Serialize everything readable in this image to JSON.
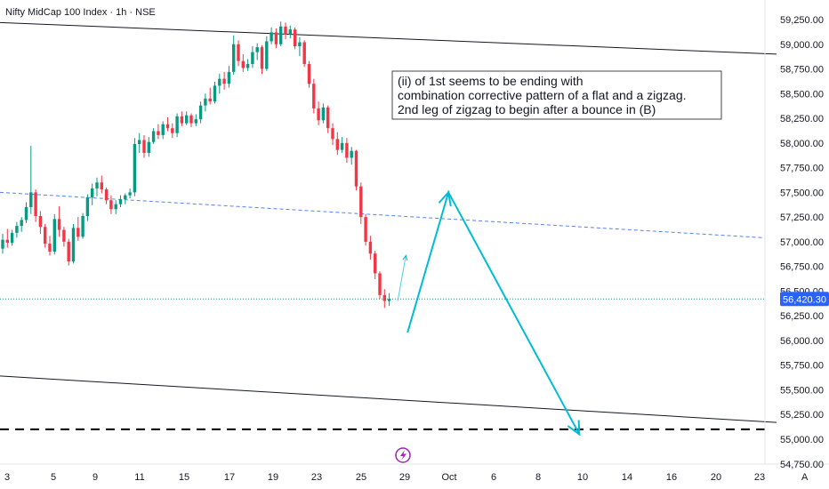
{
  "chart_data": {
    "type": "candlestick",
    "title": "Nifty MidCap 100 Index · 1h · NSE",
    "ylim": [
      54750,
      59250
    ],
    "price_ticks": [
      "59,250.00",
      "59,000.00",
      "58,750.00",
      "58,500.00",
      "58,250.00",
      "58,000.00",
      "57,750.00",
      "57,500.00",
      "57,250.00",
      "57,000.00",
      "56,750.00",
      "56,500.00",
      "56,250.00",
      "56,000.00",
      "55,750.00",
      "55,500.00",
      "55,250.00",
      "55,000.00",
      "54,750.00"
    ],
    "date_ticks": [
      "3",
      "5",
      "9",
      "11",
      "15",
      "17",
      "19",
      "23",
      "25",
      "29",
      "Oct",
      "6",
      "8",
      "10",
      "14",
      "16",
      "20",
      "23"
    ],
    "axis_mode_label": "A",
    "last_price": {
      "label": "56,420.30",
      "value": 56420.3,
      "color": "#2962ff"
    },
    "annotation": {
      "lines": [
        "(ii) of 1st seems to be ending with",
        "combination corrective pattern of a flat and a zigzag.",
        "2nd leg of zigzag to begin after a bounce in (B)"
      ]
    },
    "colors": {
      "up": "#089981",
      "down": "#f23645",
      "projection": "#00bcd4",
      "midline": "#2962ff",
      "channel": "#131722"
    },
    "support_level": 55100,
    "channel_upper": [
      59220,
      58900
    ],
    "channel_lower": [
      55640,
      55170
    ],
    "mid_line": [
      57500,
      57040
    ],
    "projection": [
      {
        "t": 124.5,
        "price": 56080
      },
      {
        "t": 137.0,
        "price": 57500
      },
      {
        "t": 177.0,
        "price": 55050
      }
    ],
    "small_projection": [
      {
        "t": 121.5,
        "price": 56400
      },
      {
        "t": 124.0,
        "price": 56860
      }
    ],
    "candles": [
      [
        56930,
        57080,
        56880,
        57020
      ],
      [
        57020,
        57130,
        56940,
        56990
      ],
      [
        56990,
        57120,
        56960,
        57090
      ],
      [
        57090,
        57200,
        57040,
        57160
      ],
      [
        57160,
        57250,
        57100,
        57220
      ],
      [
        57220,
        57400,
        57190,
        57350
      ],
      [
        57350,
        57970,
        57280,
        57500
      ],
      [
        57500,
        57530,
        57200,
        57260
      ],
      [
        57260,
        57310,
        57080,
        57150
      ],
      [
        57150,
        57180,
        56940,
        56980
      ],
      [
        56980,
        57060,
        56860,
        56900
      ],
      [
        56900,
        57280,
        56870,
        57230
      ],
      [
        57230,
        57360,
        57050,
        57120
      ],
      [
        57120,
        57150,
        56950,
        57000
      ],
      [
        57000,
        57030,
        56760,
        56800
      ],
      [
        56800,
        57180,
        56780,
        57140
      ],
      [
        57140,
        57250,
        57010,
        57050
      ],
      [
        57050,
        57290,
        57030,
        57260
      ],
      [
        57260,
        57480,
        57210,
        57450
      ],
      [
        57450,
        57590,
        57370,
        57540
      ],
      [
        57540,
        57650,
        57460,
        57600
      ],
      [
        57600,
        57670,
        57490,
        57530
      ],
      [
        57530,
        57550,
        57380,
        57420
      ],
      [
        57420,
        57470,
        57280,
        57330
      ],
      [
        57330,
        57420,
        57280,
        57380
      ],
      [
        57380,
        57470,
        57350,
        57430
      ],
      [
        57430,
        57490,
        57380,
        57470
      ],
      [
        57470,
        57540,
        57440,
        57500
      ],
      [
        57500,
        58050,
        57460,
        57990
      ],
      [
        57990,
        58100,
        57900,
        58030
      ],
      [
        58030,
        58080,
        57850,
        57900
      ],
      [
        57900,
        58060,
        57860,
        58010
      ],
      [
        58010,
        58150,
        57990,
        58120
      ],
      [
        58120,
        58190,
        58040,
        58080
      ],
      [
        58080,
        58220,
        58040,
        58190
      ],
      [
        58190,
        58260,
        58120,
        58150
      ],
      [
        58150,
        58200,
        58050,
        58100
      ],
      [
        58100,
        58300,
        58060,
        58270
      ],
      [
        58270,
        58320,
        58170,
        58200
      ],
      [
        58200,
        58320,
        58180,
        58280
      ],
      [
        58280,
        58300,
        58160,
        58200
      ],
      [
        58200,
        58290,
        58170,
        58240
      ],
      [
        58240,
        58420,
        58200,
        58380
      ],
      [
        58380,
        58500,
        58320,
        58450
      ],
      [
        58450,
        58560,
        58390,
        58420
      ],
      [
        58420,
        58620,
        58400,
        58580
      ],
      [
        58580,
        58700,
        58500,
        58650
      ],
      [
        58650,
        58720,
        58540,
        58600
      ],
      [
        58600,
        58780,
        58560,
        58720
      ],
      [
        58720,
        59090,
        58690,
        59000
      ],
      [
        59000,
        59040,
        58780,
        58830
      ],
      [
        58830,
        58900,
        58720,
        58760
      ],
      [
        58760,
        58850,
        58730,
        58800
      ],
      [
        58800,
        58980,
        58760,
        58920
      ],
      [
        58920,
        59010,
        58840,
        58970
      ],
      [
        58970,
        58990,
        58700,
        58750
      ],
      [
        58750,
        59080,
        58730,
        59030
      ],
      [
        59030,
        59170,
        59000,
        59120
      ],
      [
        59120,
        59160,
        58960,
        59000
      ],
      [
        59000,
        59230,
        58980,
        59180
      ],
      [
        59180,
        59220,
        59050,
        59100
      ],
      [
        59100,
        59190,
        59060,
        59150
      ],
      [
        59150,
        59170,
        58950,
        58980
      ],
      [
        58980,
        59070,
        58880,
        59020
      ],
      [
        59020,
        59040,
        58770,
        58800
      ],
      [
        58800,
        58830,
        58560,
        58600
      ],
      [
        58600,
        58650,
        58300,
        58350
      ],
      [
        58350,
        58420,
        58180,
        58230
      ],
      [
        58230,
        58400,
        58200,
        58360
      ],
      [
        58360,
        58380,
        58100,
        58150
      ],
      [
        58150,
        58200,
        57980,
        58040
      ],
      [
        58040,
        58110,
        57880,
        57930
      ],
      [
        57930,
        58060,
        57900,
        58000
      ],
      [
        58000,
        58050,
        57800,
        57850
      ],
      [
        57850,
        57960,
        57780,
        57920
      ],
      [
        57920,
        57930,
        57520,
        57560
      ],
      [
        57560,
        57600,
        57180,
        57250
      ],
      [
        57250,
        57280,
        56960,
        57000
      ],
      [
        57000,
        57060,
        56820,
        56880
      ],
      [
        56880,
        56910,
        56620,
        56680
      ],
      [
        56680,
        56700,
        56420,
        56460
      ],
      [
        56460,
        56520,
        56330,
        56400
      ],
      [
        56400,
        56480,
        56350,
        56420
      ]
    ]
  }
}
